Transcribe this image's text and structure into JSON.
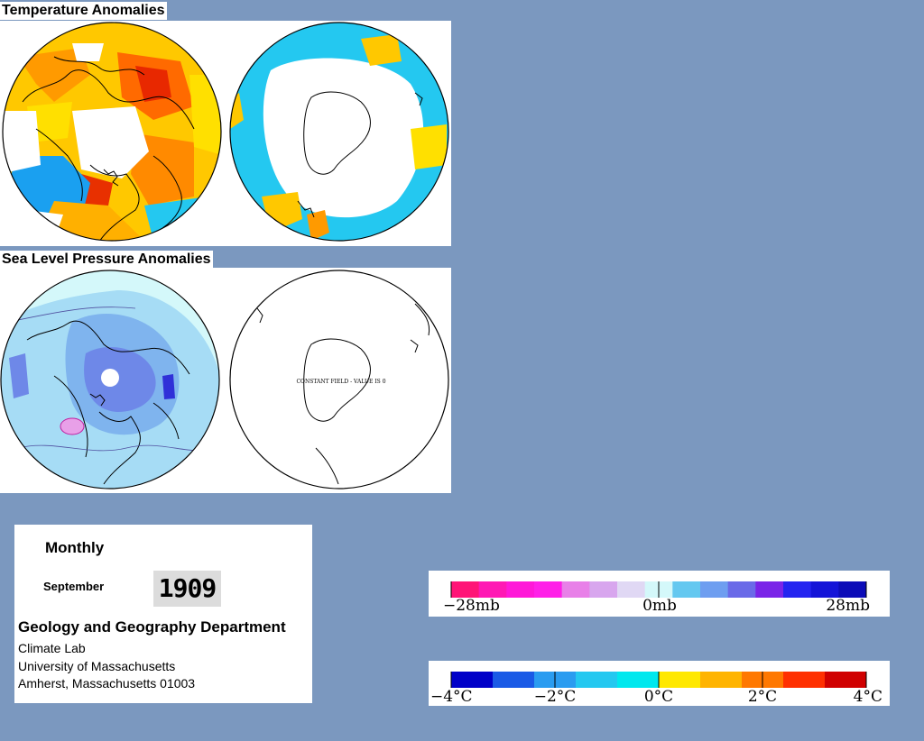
{
  "sections": {
    "temperature_title": "Temperature Anomalies",
    "pressure_title": "Sea Level Pressure Anomalies"
  },
  "maps": {
    "constant_field_label": "CONSTANT FIELD - VALUE IS 0"
  },
  "info": {
    "frequency": "Monthly",
    "month": "September",
    "year": "1909",
    "department": "Geology and Geography Department",
    "lab": "Climate Lab",
    "university": "University of Massachusetts",
    "address": "Amherst, Massachusetts 01003"
  },
  "pressure_legend": {
    "min_label": "−28mb",
    "mid_label": "0mb",
    "max_label": "28mb",
    "colors": [
      "#ff1577",
      "#ff18b4",
      "#ff18d8",
      "#ff20e8",
      "#e880e8",
      "#d8a6ee",
      "#e0d8f4",
      "#d4f8fa",
      "#64c8f0",
      "#6e9ef0",
      "#6a6ae8",
      "#7a24e8",
      "#2424f0",
      "#1414d8",
      "#0c0cb8"
    ]
  },
  "temperature_legend": {
    "labels": [
      "−4°C",
      "−2°C",
      "0°C",
      "2°C",
      "4°C"
    ],
    "colors": [
      "#0000c8",
      "#1a5ae6",
      "#2a9cf0",
      "#24c8f0",
      "#00e8ee",
      "#ffe800",
      "#ffb400",
      "#ff7800",
      "#ff3000",
      "#d00000"
    ]
  },
  "colors": {
    "background": "#7b98bf",
    "warm_anomaly": "#ff8a00",
    "cold_anomaly": "#1aa0f0",
    "pressure_fill": "#a6dcf5"
  }
}
